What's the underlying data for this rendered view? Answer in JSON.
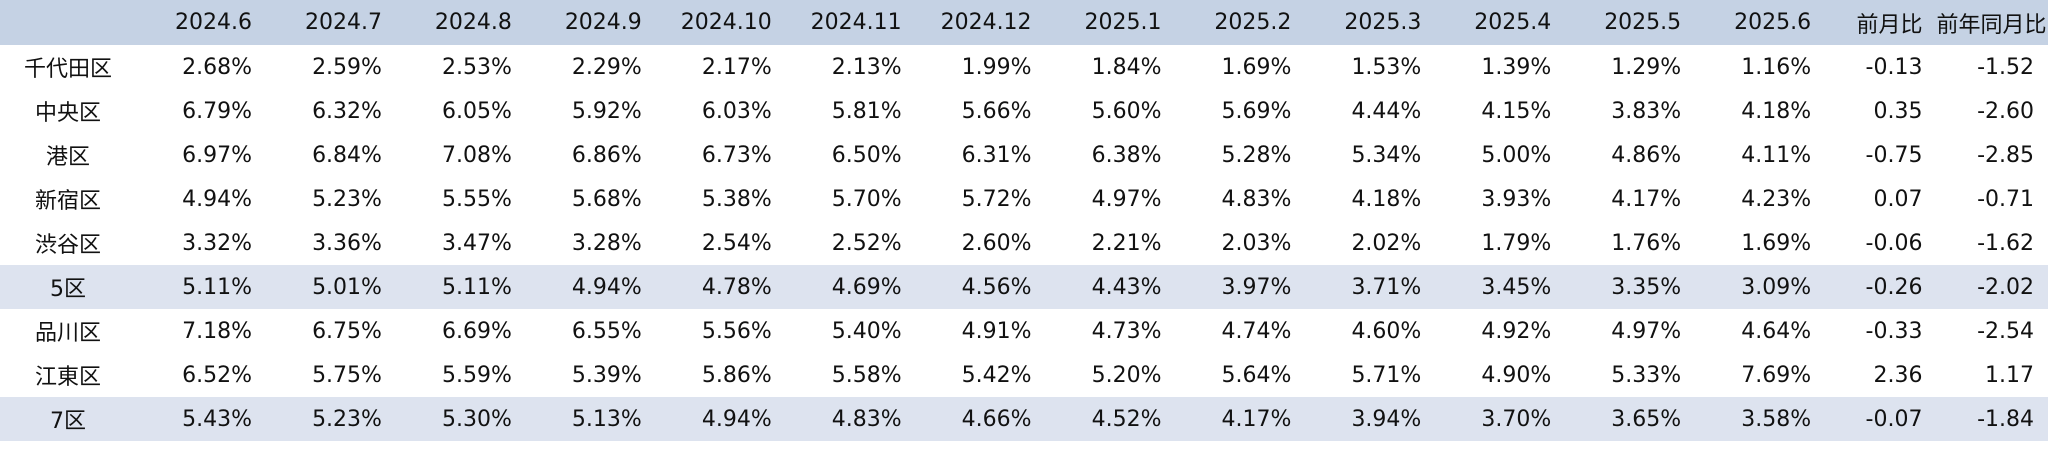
{
  "chart_data": {
    "type": "table",
    "columns": [
      "",
      "2024.6",
      "2024.7",
      "2024.8",
      "2024.9",
      "2024.10",
      "2024.11",
      "2024.12",
      "2025.1",
      "2025.2",
      "2025.3",
      "2025.4",
      "2025.5",
      "2025.6",
      "前月比",
      "前年同月比"
    ],
    "rows": [
      {
        "label": "千代田区",
        "highlight": false,
        "values": [
          "2.68%",
          "2.59%",
          "2.53%",
          "2.29%",
          "2.17%",
          "2.13%",
          "1.99%",
          "1.84%",
          "1.69%",
          "1.53%",
          "1.39%",
          "1.29%",
          "1.16%",
          "-0.13",
          "-1.52"
        ]
      },
      {
        "label": "中央区",
        "highlight": false,
        "values": [
          "6.79%",
          "6.32%",
          "6.05%",
          "5.92%",
          "6.03%",
          "5.81%",
          "5.66%",
          "5.60%",
          "5.69%",
          "4.44%",
          "4.15%",
          "3.83%",
          "4.18%",
          "0.35",
          "-2.60"
        ]
      },
      {
        "label": "港区",
        "highlight": false,
        "values": [
          "6.97%",
          "6.84%",
          "7.08%",
          "6.86%",
          "6.73%",
          "6.50%",
          "6.31%",
          "6.38%",
          "5.28%",
          "5.34%",
          "5.00%",
          "4.86%",
          "4.11%",
          "-0.75",
          "-2.85"
        ]
      },
      {
        "label": "新宿区",
        "highlight": false,
        "values": [
          "4.94%",
          "5.23%",
          "5.55%",
          "5.68%",
          "5.38%",
          "5.70%",
          "5.72%",
          "4.97%",
          "4.83%",
          "4.18%",
          "3.93%",
          "4.17%",
          "4.23%",
          "0.07",
          "-0.71"
        ]
      },
      {
        "label": "渋谷区",
        "highlight": false,
        "values": [
          "3.32%",
          "3.36%",
          "3.47%",
          "3.28%",
          "2.54%",
          "2.52%",
          "2.60%",
          "2.21%",
          "2.03%",
          "2.02%",
          "1.79%",
          "1.76%",
          "1.69%",
          "-0.06",
          "-1.62"
        ]
      },
      {
        "label": "5区",
        "highlight": true,
        "values": [
          "5.11%",
          "5.01%",
          "5.11%",
          "4.94%",
          "4.78%",
          "4.69%",
          "4.56%",
          "4.43%",
          "3.97%",
          "3.71%",
          "3.45%",
          "3.35%",
          "3.09%",
          "-0.26",
          "-2.02"
        ]
      },
      {
        "label": "品川区",
        "highlight": false,
        "values": [
          "7.18%",
          "6.75%",
          "6.69%",
          "6.55%",
          "5.56%",
          "5.40%",
          "4.91%",
          "4.73%",
          "4.74%",
          "4.60%",
          "4.92%",
          "4.97%",
          "4.64%",
          "-0.33",
          "-2.54"
        ]
      },
      {
        "label": "江東区",
        "highlight": false,
        "values": [
          "6.52%",
          "5.75%",
          "5.59%",
          "5.39%",
          "5.86%",
          "5.58%",
          "5.42%",
          "5.20%",
          "5.64%",
          "5.71%",
          "4.90%",
          "5.33%",
          "7.69%",
          "2.36",
          "1.17"
        ]
      },
      {
        "label": "7区",
        "highlight": true,
        "values": [
          "5.43%",
          "5.23%",
          "5.30%",
          "5.13%",
          "4.94%",
          "4.83%",
          "4.66%",
          "4.52%",
          "4.17%",
          "3.94%",
          "3.70%",
          "3.65%",
          "3.58%",
          "-0.07",
          "-1.84"
        ]
      }
    ],
    "colors": {
      "header_background": "#c5d2e4",
      "highlight_row": "#dde3ef"
    }
  }
}
